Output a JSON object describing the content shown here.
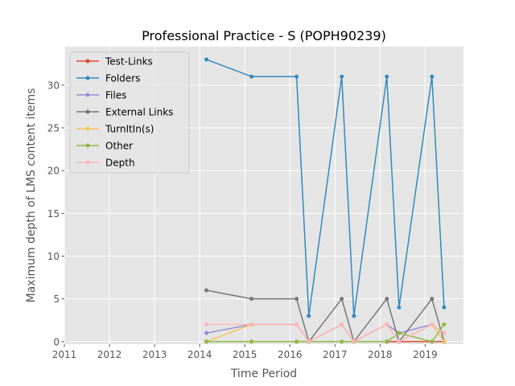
{
  "chart_data": {
    "type": "line",
    "title": "Professional Practice - S (POPH90239)",
    "xlabel": "Time Period",
    "ylabel": "Maximum depth of LMS content items",
    "xlim": [
      2011.0,
      2019.85
    ],
    "ylim": [
      -0.3,
      34.5
    ],
    "x_ticks": [
      2011,
      2012,
      2013,
      2014,
      2015,
      2016,
      2017,
      2018,
      2019
    ],
    "y_ticks": [
      0,
      5,
      10,
      15,
      20,
      25,
      30
    ],
    "grid": true,
    "legend_position": "upper-left",
    "x": [
      2014.15,
      2015.15,
      2016.15,
      2016.42,
      2017.15,
      2017.42,
      2018.15,
      2018.42,
      2019.15,
      2019.42
    ],
    "series": [
      {
        "name": "Test-Links",
        "color": "#e24a33",
        "x": [
          2018.15,
          2018.42,
          2019.15,
          2019.42
        ],
        "values": [
          0,
          0,
          0,
          0
        ]
      },
      {
        "name": "Folders",
        "color": "#348abd",
        "values": [
          33,
          31,
          31,
          3,
          31,
          3,
          31,
          4,
          31,
          4
        ]
      },
      {
        "name": "Files",
        "color": "#988ed5",
        "values": [
          1,
          2,
          2,
          0,
          2,
          0,
          2,
          1,
          2,
          1
        ]
      },
      {
        "name": "External Links",
        "color": "#777777",
        "values": [
          6,
          5,
          5,
          0,
          5,
          0,
          5,
          0,
          5,
          0
        ]
      },
      {
        "name": "TurnItIn(s)",
        "color": "#fbc15e",
        "values": [
          0,
          2,
          2,
          0,
          2,
          0,
          2,
          0,
          2,
          0
        ]
      },
      {
        "name": "Other",
        "color": "#8eba42",
        "values": [
          0,
          0,
          0,
          0,
          0,
          0,
          0,
          1,
          0,
          2
        ]
      },
      {
        "name": "Depth",
        "color": "#ffb5b8",
        "values": [
          2,
          2,
          2,
          0,
          2,
          0,
          2,
          0,
          2,
          1
        ]
      }
    ]
  }
}
